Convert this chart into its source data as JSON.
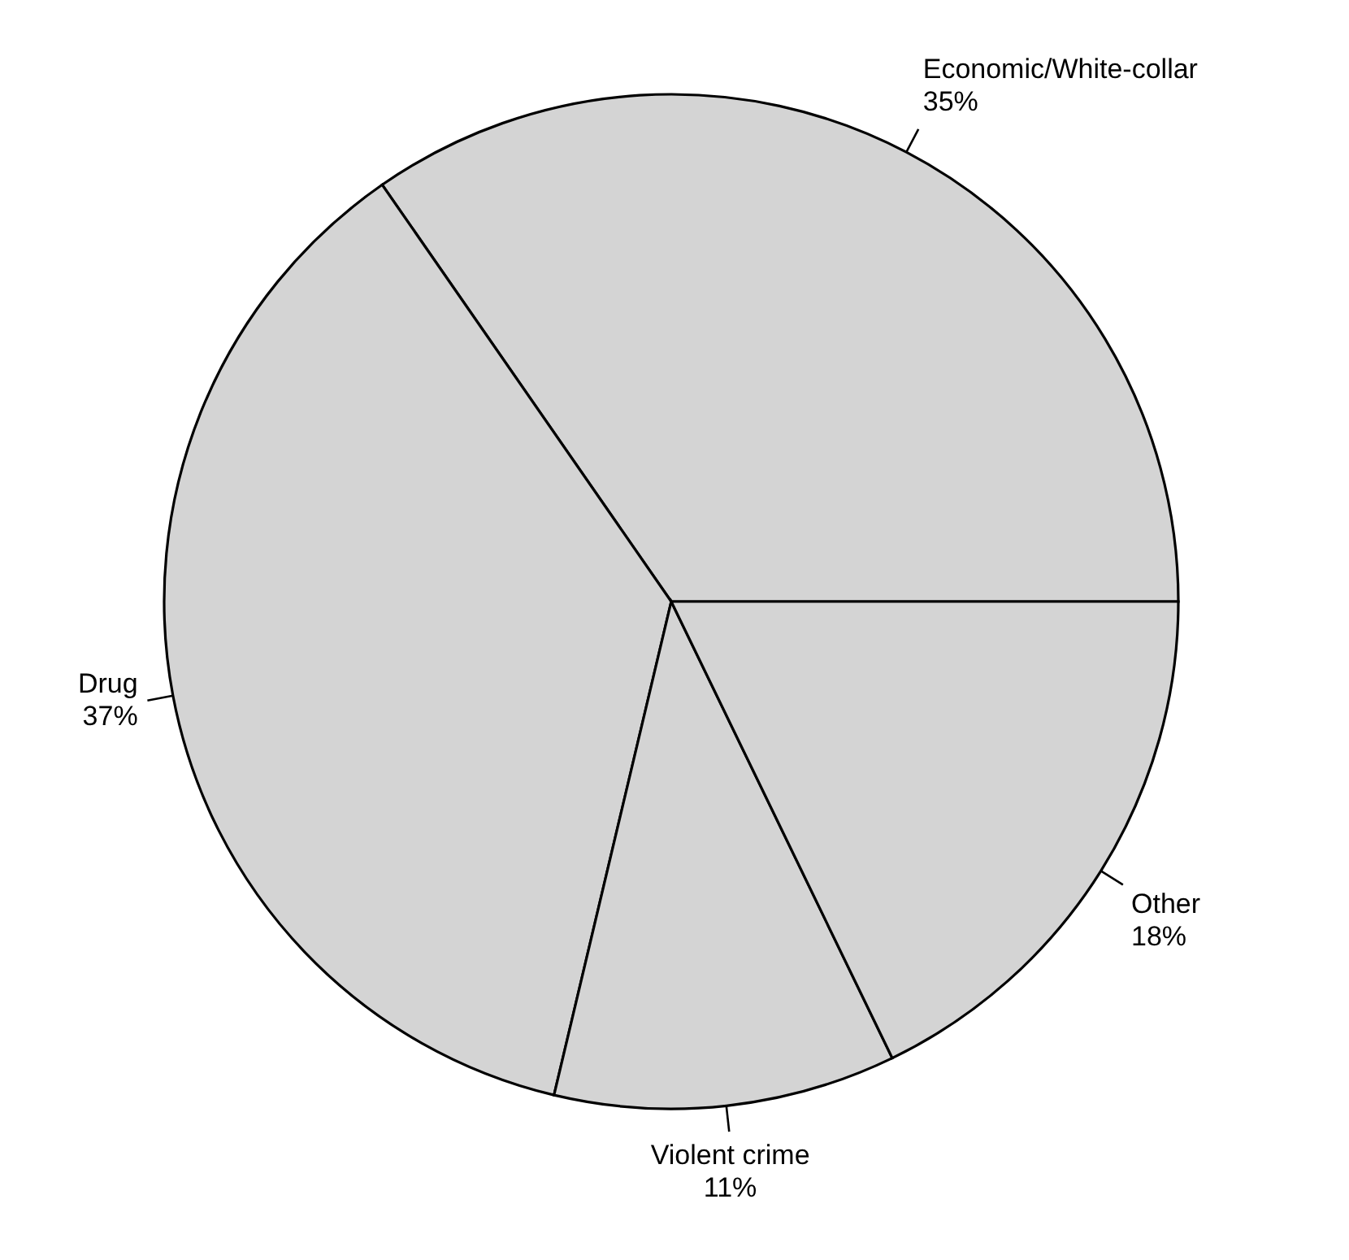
{
  "chart_data": {
    "type": "pie",
    "categories": [
      "Economic/White-collar",
      "Drug",
      "Violent crime",
      "Other"
    ],
    "values": [
      35,
      37,
      11,
      18
    ],
    "colors": [
      "#d4d4d4",
      "#d4d4d4",
      "#d4d4d4",
      "#d4d4d4"
    ],
    "value_labels": [
      "35%",
      "37%",
      "11%",
      "18%"
    ]
  }
}
